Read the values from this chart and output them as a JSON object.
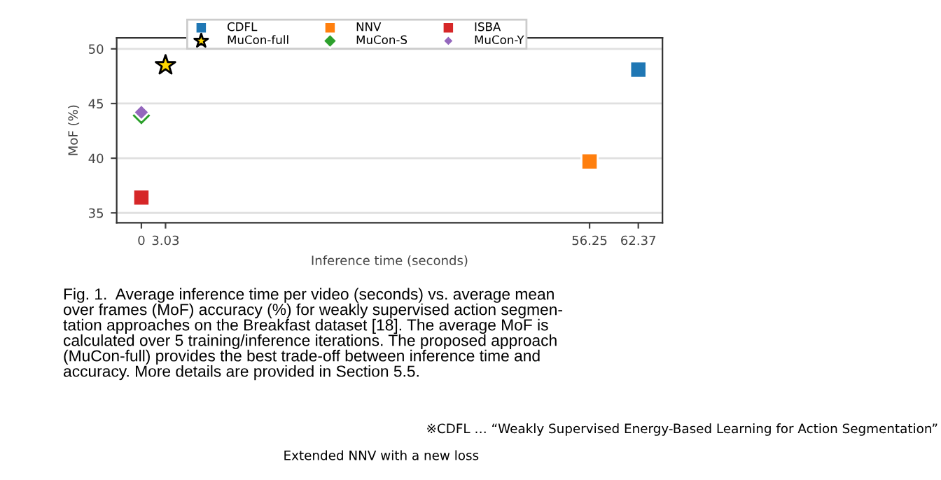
{
  "chart_data": {
    "type": "scatter",
    "xlabel": "Inference time (seconds)",
    "ylabel": "MoF (%)",
    "series": [
      {
        "name": "CDFL",
        "color": "#1f77b4",
        "marker": "square",
        "x": [
          62.37
        ],
        "values": [
          48.1
        ]
      },
      {
        "name": "NNV",
        "color": "#ff7f0e",
        "marker": "square",
        "x": [
          56.25
        ],
        "values": [
          39.7
        ]
      },
      {
        "name": "ISBA",
        "color": "#d62728",
        "marker": "square",
        "x": [
          0
        ],
        "values": [
          36.4
        ]
      },
      {
        "name": "MuCon-full",
        "color": "#ffd700",
        "marker": "star",
        "x": [
          3.03
        ],
        "values": [
          48.5
        ]
      },
      {
        "name": "MuCon-S",
        "color": "#2ca02c",
        "marker": "diamond",
        "x": [
          0
        ],
        "values": [
          43.9
        ]
      },
      {
        "name": "MuCon-Y",
        "color": "#9467bd",
        "marker": "diamond",
        "x": [
          0
        ],
        "values": [
          44.2
        ]
      }
    ],
    "xlim": [
      -3.1,
      65.4
    ],
    "xticks": [
      0,
      3.03,
      56.25,
      62.37
    ],
    "ylim": [
      34.1,
      51.0
    ],
    "yticks": [
      35,
      40,
      45,
      50
    ],
    "grid": "y",
    "legend": "top",
    "annotations": [
      "Fig. 1.  Average inference time per video (seconds) vs. average mean\nover frames (MoF) accuracy (%) for weakly supervised action segmen-\ntation approaches on the Breakfast dataset [18]. The average MoF is\ncalculated over 5 training/inference iterations. The proposed approach\n(MuCon-full) provides the best trade-off between inference time and\naccuracy. More details are provided in Section 5.5.",
      "※CDFL … “Weakly Supervised Energy-Based Learning for Action Segmentation”",
      "Extended NNV with a new loss"
    ]
  }
}
